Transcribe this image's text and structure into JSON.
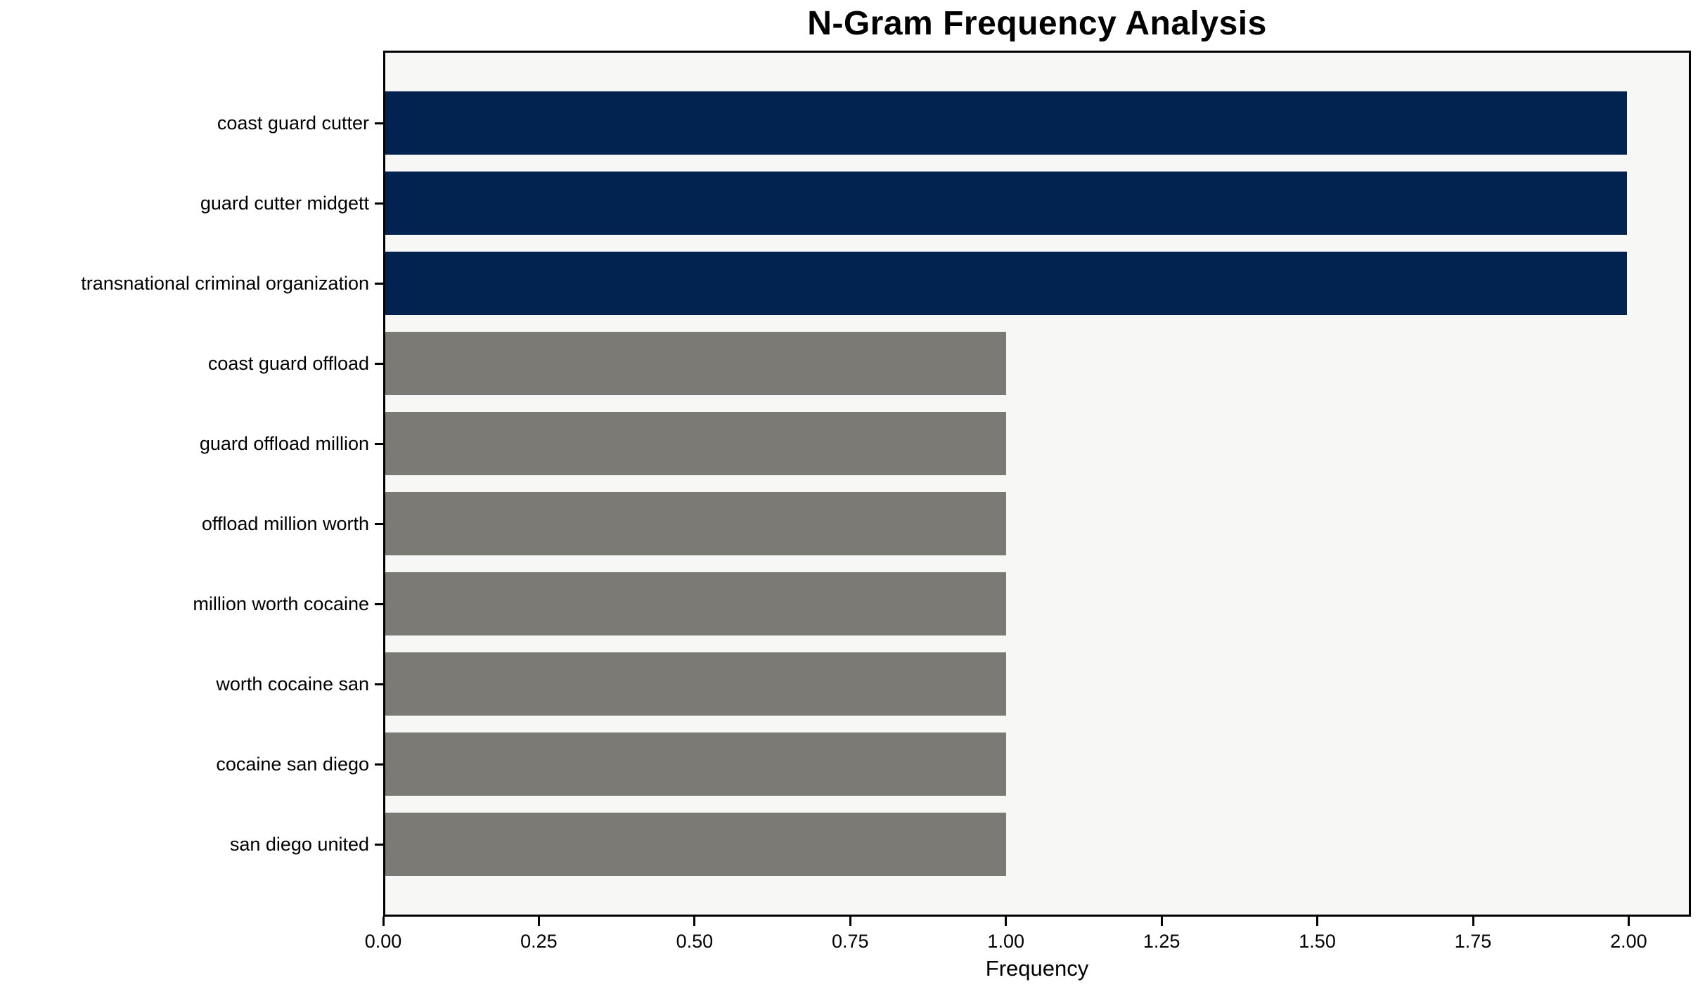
{
  "chart_data": {
    "type": "bar",
    "orientation": "horizontal",
    "title": "N-Gram Frequency Analysis",
    "xlabel": "Frequency",
    "ylabel": "",
    "categories": [
      "coast guard cutter",
      "guard cutter midgett",
      "transnational criminal organization",
      "coast guard offload",
      "guard offload million",
      "offload million worth",
      "million worth cocaine",
      "worth cocaine san",
      "cocaine san diego",
      "san diego united"
    ],
    "values": [
      2,
      2,
      2,
      1,
      1,
      1,
      1,
      1,
      1,
      1
    ],
    "bar_colors": [
      "#02234F",
      "#02234F",
      "#02234F",
      "#7B7A75",
      "#7B7A75",
      "#7B7A75",
      "#7B7A75",
      "#7B7A75",
      "#7B7A75",
      "#7B7A75"
    ],
    "x_ticks": [
      "0.00",
      "0.25",
      "0.50",
      "0.75",
      "1.00",
      "1.25",
      "1.50",
      "1.75",
      "2.00"
    ],
    "x_tick_values": [
      0,
      0.25,
      0.5,
      0.75,
      1.0,
      1.25,
      1.5,
      1.75,
      2.0
    ],
    "xlim": [
      0,
      2.1
    ],
    "grid": false,
    "legend": null,
    "colors": {
      "highlight_bar": "#02234F",
      "default_bar": "#7B7A75",
      "plot_background": "#F7F7F6",
      "spine": "#000000",
      "text": "#000000"
    }
  }
}
